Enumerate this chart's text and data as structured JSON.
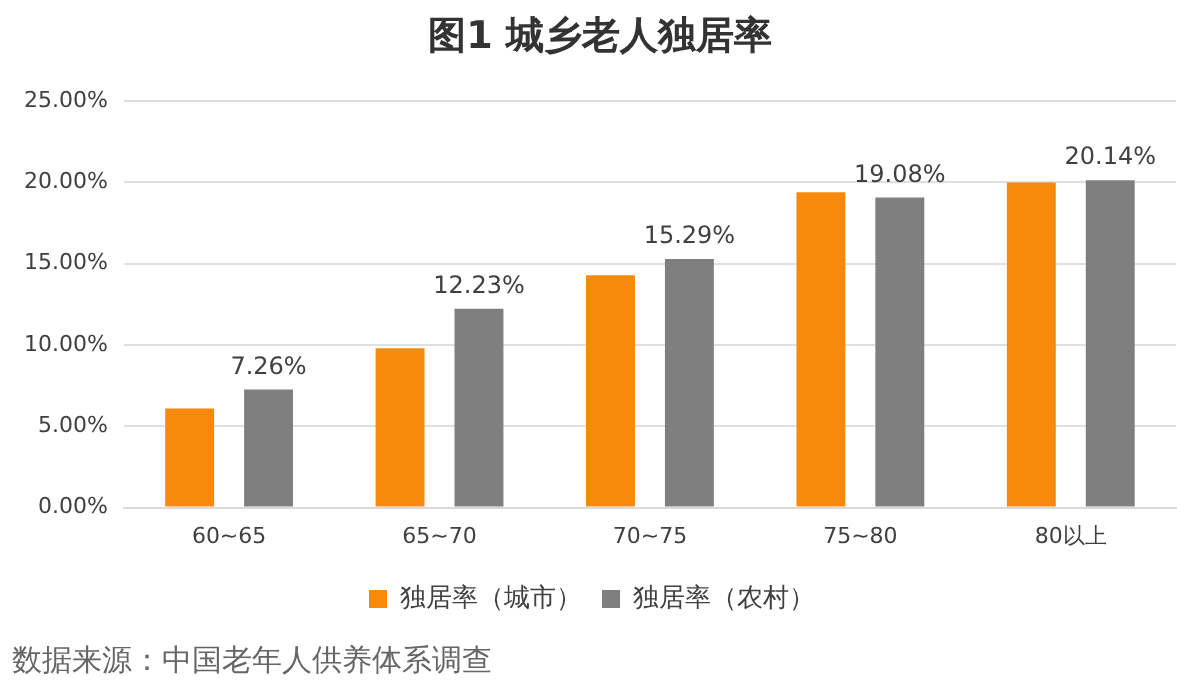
{
  "chart_data": {
    "type": "bar",
    "title": "图1  城乡老人独居率",
    "categories": [
      "60~65",
      "65~70",
      "70~75",
      "75~80",
      "80以上"
    ],
    "series": [
      {
        "name": "独居率（城市）",
        "color": "#f78a0a",
        "values": [
          6.1,
          9.8,
          14.3,
          19.4,
          20.0
        ]
      },
      {
        "name": "独居率（农村）",
        "color": "#7f7f7f",
        "values": [
          7.26,
          12.23,
          15.29,
          19.08,
          20.14
        ],
        "value_labels": [
          "7.26%",
          "12.23%",
          "15.29%",
          "19.08%",
          "20.14%"
        ]
      }
    ],
    "ylim": [
      0,
      25
    ],
    "yticks": [
      {
        "value": 0,
        "label": "0.00%"
      },
      {
        "value": 5,
        "label": "5.00%"
      },
      {
        "value": 10,
        "label": "10.00%"
      },
      {
        "value": 15,
        "label": "15.00%"
      },
      {
        "value": 20,
        "label": "20.00%"
      },
      {
        "value": 25,
        "label": "25.00%"
      }
    ],
    "grid": "y",
    "legend": "bottom",
    "annotations": [
      "数据来源：中国老年人供养体系调查"
    ]
  }
}
